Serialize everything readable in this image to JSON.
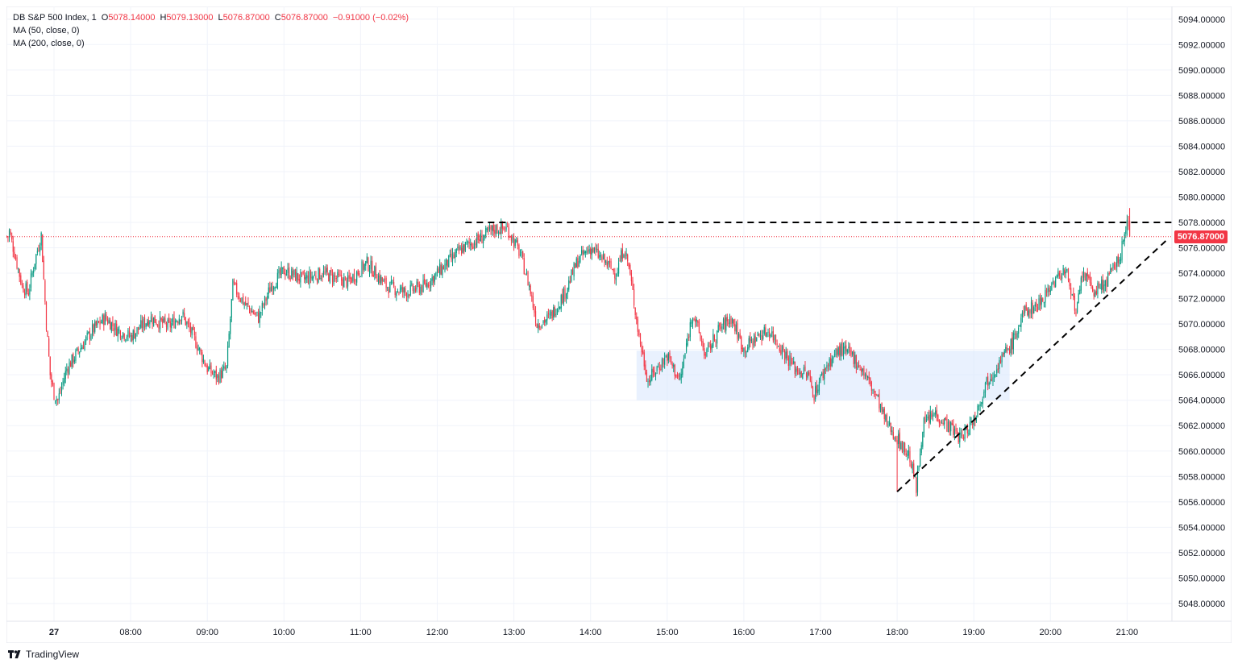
{
  "legend": {
    "title": "DB S&P 500 Index, 1",
    "open_key": "O",
    "open": "5078.14000",
    "high_key": "H",
    "high": "5079.13000",
    "low_key": "L",
    "low": "5076.87000",
    "close_key": "C",
    "close": "5076.87000",
    "change": "−0.91000 (−0.02%)",
    "ma50": "MA (50, close, 0)",
    "ma200": "MA (200, close, 0)"
  },
  "last_price_label": "5076.87000",
  "brand": "TradingView",
  "colors": {
    "up": "#089981",
    "down": "#f23645",
    "grid": "#f0f3fa",
    "zone": "#dbe8fd",
    "line": "#000000"
  },
  "chart_data": {
    "type": "candlestick",
    "symbol": "DB S&P 500 Index",
    "interval": "1",
    "ylim": [
      5046.6,
      5095.0
    ],
    "y_ticks": [
      "5048.00000",
      "5050.00000",
      "5052.00000",
      "5054.00000",
      "5056.00000",
      "5058.00000",
      "5060.00000",
      "5062.00000",
      "5064.00000",
      "5066.00000",
      "5068.00000",
      "5070.00000",
      "5072.00000",
      "5074.00000",
      "5076.00000",
      "5078.00000",
      "5080.00000",
      "5082.00000",
      "5084.00000",
      "5086.00000",
      "5088.00000",
      "5090.00000",
      "5092.00000",
      "5094.00000"
    ],
    "x_ticks": [
      "27",
      "08:00",
      "09:00",
      "10:00",
      "11:00",
      "12:00",
      "13:00",
      "14:00",
      "15:00",
      "16:00",
      "17:00",
      "18:00",
      "19:00",
      "20:00",
      "21:00"
    ],
    "x_tick_minutes": [
      0,
      60,
      120,
      180,
      240,
      300,
      360,
      420,
      480,
      540,
      600,
      660,
      720,
      780,
      840
    ],
    "start_minute": -37,
    "end_minute": 878,
    "last_price": 5076.87,
    "key_path": [
      [
        -35,
        5077.3
      ],
      [
        -30,
        5075.2
      ],
      [
        -25,
        5073.0
      ],
      [
        -20,
        5072.5
      ],
      [
        -15,
        5075.0
      ],
      [
        -10,
        5077.0
      ],
      [
        -6,
        5070.0
      ],
      [
        -3,
        5066.0
      ],
      [
        0,
        5064.5
      ],
      [
        3,
        5064.0
      ],
      [
        10,
        5066.5
      ],
      [
        20,
        5068.0
      ],
      [
        30,
        5069.5
      ],
      [
        40,
        5070.5
      ],
      [
        50,
        5069.5
      ],
      [
        60,
        5069.0
      ],
      [
        75,
        5070.5
      ],
      [
        90,
        5069.8
      ],
      [
        100,
        5070.8
      ],
      [
        110,
        5068.8
      ],
      [
        120,
        5066.5
      ],
      [
        128,
        5065.8
      ],
      [
        135,
        5066.5
      ],
      [
        140,
        5073.0
      ],
      [
        150,
        5071.5
      ],
      [
        160,
        5070.5
      ],
      [
        170,
        5073.0
      ],
      [
        180,
        5074.2
      ],
      [
        195,
        5073.5
      ],
      [
        210,
        5074.0
      ],
      [
        230,
        5073.3
      ],
      [
        245,
        5074.8
      ],
      [
        260,
        5073.0
      ],
      [
        275,
        5072.5
      ],
      [
        290,
        5073.0
      ],
      [
        305,
        5074.5
      ],
      [
        320,
        5076.0
      ],
      [
        335,
        5076.8
      ],
      [
        345,
        5077.5
      ],
      [
        355,
        5077.5
      ],
      [
        365,
        5075.5
      ],
      [
        372,
        5073.0
      ],
      [
        378,
        5070.0
      ],
      [
        388,
        5070.5
      ],
      [
        400,
        5072.5
      ],
      [
        410,
        5075.0
      ],
      [
        420,
        5076.0
      ],
      [
        430,
        5075.0
      ],
      [
        440,
        5074.0
      ],
      [
        446,
        5076.0
      ],
      [
        450,
        5074.5
      ],
      [
        458,
        5069.0
      ],
      [
        465,
        5065.5
      ],
      [
        472,
        5066.5
      ],
      [
        480,
        5067.5
      ],
      [
        490,
        5065.5
      ],
      [
        500,
        5071.0
      ],
      [
        510,
        5067.5
      ],
      [
        520,
        5069.5
      ],
      [
        530,
        5070.5
      ],
      [
        540,
        5068.0
      ],
      [
        550,
        5069.0
      ],
      [
        560,
        5069.5
      ],
      [
        570,
        5068.0
      ],
      [
        580,
        5066.5
      ],
      [
        590,
        5066.0
      ],
      [
        595,
        5064.5
      ],
      [
        605,
        5066.8
      ],
      [
        615,
        5068.0
      ],
      [
        625,
        5067.5
      ],
      [
        635,
        5066.0
      ],
      [
        645,
        5064.0
      ],
      [
        650,
        5062.5
      ],
      [
        660,
        5061.0
      ],
      [
        670,
        5059.5
      ],
      [
        675,
        5057.0
      ],
      [
        680,
        5062.0
      ],
      [
        690,
        5063.0
      ],
      [
        700,
        5062.0
      ],
      [
        710,
        5061.0
      ],
      [
        720,
        5062.5
      ],
      [
        730,
        5065.5
      ],
      [
        740,
        5067.0
      ],
      [
        750,
        5068.5
      ],
      [
        760,
        5071.0
      ],
      [
        770,
        5071.5
      ],
      [
        780,
        5073.0
      ],
      [
        790,
        5074.2
      ],
      [
        795,
        5073.5
      ],
      [
        800,
        5070.5
      ],
      [
        805,
        5074.0
      ],
      [
        815,
        5072.5
      ],
      [
        825,
        5073.5
      ],
      [
        835,
        5075.5
      ],
      [
        840,
        5078.0
      ],
      [
        842,
        5076.9
      ]
    ],
    "resistance_line": {
      "price": 5078.0,
      "from_minute": 322,
      "to_minute": 878
    },
    "support_trendline": {
      "from": [
        660,
        5056.8
      ],
      "to": [
        873,
        5076.8
      ]
    },
    "consolidation_zone": {
      "from_minute": 456,
      "to_minute": 748,
      "low": 5064.0,
      "high": 5067.9
    }
  }
}
